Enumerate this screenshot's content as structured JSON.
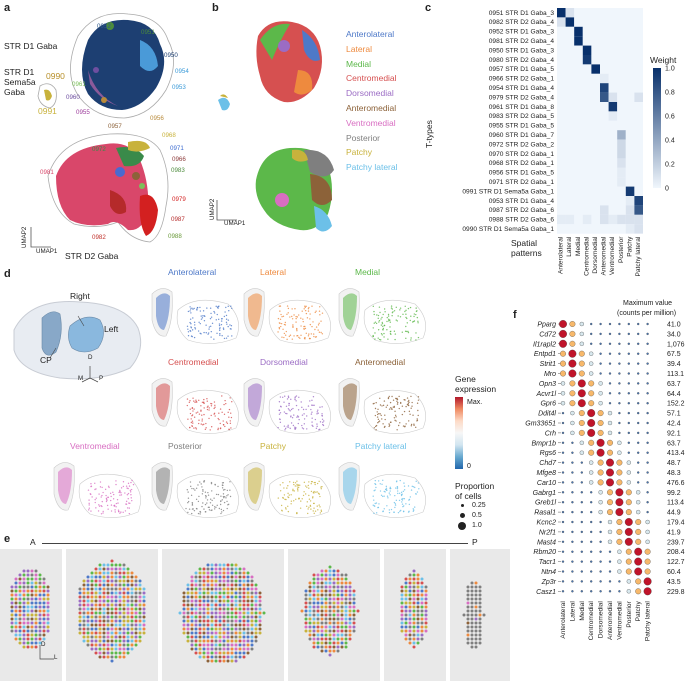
{
  "panel_labels": {
    "a": "a",
    "b": "b",
    "c": "c",
    "d": "d",
    "e": "e",
    "f": "f"
  },
  "panel_a": {
    "clusters": {
      "d1": "STR D1 Gaba",
      "d1_sema": "STR D1 Sema5a Gaba",
      "d2": "STR D2 Gaba"
    },
    "axis": {
      "x": "UMAP1",
      "y": "UMAP2"
    },
    "ids": [
      "0952",
      "0951",
      "0950",
      "0954",
      "0953",
      "0961",
      "0960",
      "0955",
      "0956",
      "0957",
      "0990",
      "0991",
      "0968",
      "0971",
      "0966",
      "0983",
      "0972",
      "0981",
      "0979",
      "0987",
      "0982",
      "0988"
    ]
  },
  "panel_b": {
    "axis": {
      "x": "UMAP1",
      "y": "UMAP2"
    },
    "legend": [
      {
        "label": "Anterolateral",
        "color": "#4e79c8"
      },
      {
        "label": "Lateral",
        "color": "#ee8a3e"
      },
      {
        "label": "Medial",
        "color": "#5cb84a"
      },
      {
        "label": "Centromedial",
        "color": "#d65050"
      },
      {
        "label": "Dorsomedial",
        "color": "#9b6cc4"
      },
      {
        "label": "Anteromedial",
        "color": "#8c6239"
      },
      {
        "label": "Ventromedial",
        "color": "#d86ec2"
      },
      {
        "label": "Posterior",
        "color": "#7f7f7f"
      },
      {
        "label": "Patchy",
        "color": "#c8b23c"
      },
      {
        "label": "Patchy lateral",
        "color": "#6cc0e8"
      }
    ]
  },
  "chart_data": {
    "type": "heatmap",
    "ylabel": "T-types",
    "xlabel": "Spatial patterns",
    "colorbar": {
      "title": "Weight",
      "ticks": [
        "1.0",
        "0.8",
        "0.6",
        "0.4",
        "0.2",
        "0"
      ]
    },
    "rows": [
      "0951 STR D1 Gaba_3",
      "0982 STR D2 Gaba_4",
      "0952 STR D1 Gaba_3",
      "0981 STR D2 Gaba_4",
      "0950 STR D1 Gaba_3",
      "0980 STR D2 Gaba_4",
      "0957 STR D1 Gaba_5",
      "0966 STR D2 Gaba_1",
      "0954 STR D1 Gaba_4",
      "0979 STR D2 Gaba_4",
      "0961 STR D1 Gaba_8",
      "0983 STR D2 Gaba_5",
      "0955 STR D1 Gaba_5",
      "0960 STR D1 Gaba_7",
      "0972 STR D2 Gaba_2",
      "0970 STR D2 Gaba_1",
      "0968 STR D2 Gaba_1",
      "0956 STR D1 Gaba_5",
      "0971 STR D2 Gaba_1",
      "0991 STR D1 Sema5a Gaba_1",
      "0953 STR D1 Gaba_4",
      "0987 STR D2 Gaba_6",
      "0988 STR D2 Gaba_6",
      "0990 STR D1 Sema5a Gaba_1"
    ],
    "columns": [
      "Anterolateral",
      "Lateral",
      "Medial",
      "Centromedial",
      "Dorsomedial",
      "Anteromedial",
      "Ventromedial",
      "Posterior",
      "Patchy",
      "Patchy lateral"
    ],
    "values": [
      [
        1.0,
        0.1,
        0,
        0,
        0,
        0,
        0,
        0,
        0,
        0
      ],
      [
        0.1,
        1.0,
        0,
        0,
        0,
        0,
        0,
        0,
        0,
        0
      ],
      [
        0,
        0,
        1.0,
        0,
        0,
        0,
        0,
        0,
        0,
        0
      ],
      [
        0,
        0,
        1.0,
        0,
        0,
        0,
        0,
        0,
        0,
        0
      ],
      [
        0,
        0,
        0,
        1.0,
        0,
        0,
        0,
        0,
        0,
        0
      ],
      [
        0,
        0,
        0,
        0.95,
        0,
        0,
        0,
        0,
        0,
        0
      ],
      [
        0,
        0,
        0,
        0,
        1.0,
        0,
        0,
        0,
        0,
        0
      ],
      [
        0,
        0,
        0,
        0,
        0,
        0.05,
        0,
        0,
        0,
        0
      ],
      [
        0,
        0,
        0,
        0,
        0,
        0.9,
        0,
        0,
        0,
        0
      ],
      [
        0,
        0,
        0,
        0,
        0,
        0.8,
        0.1,
        0,
        0,
        0.1
      ],
      [
        0,
        0,
        0,
        0,
        0,
        0,
        0.95,
        0,
        0,
        0
      ],
      [
        0,
        0,
        0,
        0,
        0,
        0,
        0.05,
        0,
        0,
        0
      ],
      [
        0,
        0,
        0,
        0,
        0,
        0,
        0,
        0,
        0,
        0
      ],
      [
        0,
        0,
        0,
        0,
        0,
        0,
        0,
        0.35,
        0,
        0
      ],
      [
        0,
        0,
        0,
        0,
        0,
        0,
        0,
        0.15,
        0,
        0
      ],
      [
        0,
        0,
        0,
        0,
        0,
        0,
        0,
        0.15,
        0,
        0
      ],
      [
        0,
        0,
        0,
        0,
        0,
        0,
        0,
        0.1,
        0,
        0
      ],
      [
        0,
        0,
        0,
        0,
        0,
        0,
        0,
        0.05,
        0,
        0
      ],
      [
        0,
        0,
        0,
        0,
        0,
        0,
        0,
        0.05,
        0,
        0
      ],
      [
        0,
        0,
        0,
        0,
        0,
        0,
        0,
        0,
        0.95,
        0
      ],
      [
        0,
        0,
        0,
        0,
        0,
        0,
        0,
        0,
        0.05,
        0.9
      ],
      [
        0,
        0,
        0,
        0,
        0,
        0.1,
        0,
        0,
        0.1,
        0.8
      ],
      [
        0.05,
        0.05,
        0,
        0.05,
        0,
        0.1,
        0.05,
        0.1,
        0.1,
        0.1
      ],
      [
        0,
        0,
        0,
        0,
        0,
        0,
        0,
        0,
        0.05,
        0.1
      ]
    ]
  },
  "panel_d": {
    "brain": {
      "right": "Right",
      "left": "Left",
      "cp": "CP",
      "d": "D",
      "m": "M",
      "p": "P"
    },
    "patterns": [
      {
        "label": "Anterolateral",
        "color": "#4e79c8"
      },
      {
        "label": "Lateral",
        "color": "#ee8a3e"
      },
      {
        "label": "Medial",
        "color": "#5cb84a"
      },
      {
        "label": "Centromedial",
        "color": "#d65050"
      },
      {
        "label": "Dorsomedial",
        "color": "#9b6cc4"
      },
      {
        "label": "Anteromedial",
        "color": "#8c6239"
      },
      {
        "label": "Ventromedial",
        "color": "#d86ec2"
      },
      {
        "label": "Posterior",
        "color": "#7f7f7f"
      },
      {
        "label": "Patchy",
        "color": "#c8b23c"
      },
      {
        "label": "Patchy lateral",
        "color": "#6cc0e8"
      }
    ],
    "gene_expr": {
      "title1": "Gene",
      "title2": "expression",
      "max": "Max.",
      "min": "0"
    },
    "proportion": {
      "title1": "Proportion",
      "title2": "of cells",
      "sizes": [
        "0.25",
        "0.5",
        "1.0"
      ]
    }
  },
  "panel_e": {
    "left": "A",
    "right": "P",
    "axis_d": "D",
    "axis_l": "L"
  },
  "panel_f": {
    "header1": "Maximum value",
    "header2": "(counts per million)",
    "genes": [
      "Pparg",
      "Cd72",
      "Il1rapl2",
      "Entpd1",
      "Strit1",
      "Mro",
      "Opn3",
      "Acvr1l",
      "Gpr6",
      "Ddit4l",
      "Gm33651",
      "Crh",
      "Bmpr1b",
      "Rgs6",
      "Chd7",
      "Mfge8",
      "Car10",
      "Gabrg1",
      "Greb1l",
      "Rasal1",
      "Kcnc2",
      "Nr2f1",
      "Mast4",
      "Rbm20",
      "Tacr1",
      "Ntn4",
      "Zp3r",
      "Casz1"
    ],
    "max_values": [
      "41.0",
      "34.0",
      "1,076.4",
      "67.5",
      "39.4",
      "113.1",
      "63.7",
      "64.4",
      "152.2",
      "57.1",
      "42.4",
      "92.1",
      "63.7",
      "413.4",
      "48.7",
      "48.3",
      "476.6",
      "99.2",
      "113.4",
      "44.9",
      "179.4",
      "41.9",
      "239.7",
      "208.4",
      "122.7",
      "60.4",
      "43.5",
      "229.8"
    ],
    "columns": [
      "Anterolateral",
      "Lateral",
      "Medial",
      "Centromedial",
      "Dorsomedial",
      "Anteromedial",
      "Ventromedial",
      "Posterior",
      "Patchy",
      "Patchy lateral"
    ]
  }
}
